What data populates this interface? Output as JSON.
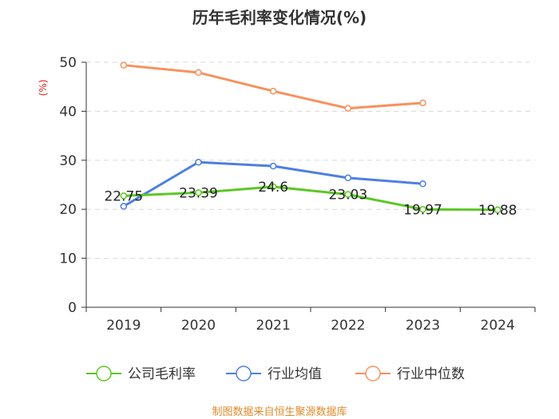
{
  "chart_data": {
    "type": "line",
    "title": "历年毛利率变化情况(%)",
    "xlabel": "",
    "ylabel": "(%)",
    "categories": [
      "2019",
      "2020",
      "2021",
      "2022",
      "2023",
      "2024"
    ],
    "ylim": [
      0,
      50
    ],
    "yticks": [
      0,
      10,
      20,
      30,
      40,
      50
    ],
    "grid": true,
    "legend_position": "bottom",
    "series": [
      {
        "name": "公司毛利率",
        "color": "#5cc726",
        "values": [
          22.75,
          23.39,
          24.6,
          23.03,
          19.97,
          19.88
        ],
        "labels": [
          "22.75",
          "23.39",
          "24.6",
          "23.03",
          "19.97",
          "19.88"
        ]
      },
      {
        "name": "行业均值",
        "color": "#4e7fe0",
        "values": [
          20.6,
          29.6,
          28.8,
          26.4,
          25.2,
          null
        ]
      },
      {
        "name": "行业中位数",
        "color": "#f7925c",
        "values": [
          49.4,
          47.9,
          44.1,
          40.6,
          41.7,
          null
        ]
      }
    ],
    "source": "制图数据来自恒生聚源数据库"
  }
}
